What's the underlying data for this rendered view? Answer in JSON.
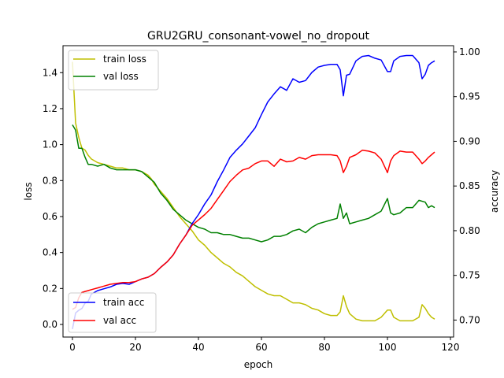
{
  "chart_data": {
    "type": "line",
    "title": "GRU2GRU_consonant-vowel_no_dropout",
    "xlabel": "epoch",
    "ylabel_left": "loss",
    "ylabel_right": "accuracy",
    "xlim": [
      -3,
      121
    ],
    "ylim_left": [
      -0.07,
      1.55
    ],
    "ylim_right": [
      0.681,
      1.007
    ],
    "x_ticks": [
      0,
      20,
      40,
      60,
      80,
      100,
      120
    ],
    "y_ticks_left": [
      0.0,
      0.2,
      0.4,
      0.6,
      0.8,
      1.0,
      1.2,
      1.4
    ],
    "y_ticks_right": [
      0.7,
      0.75,
      0.8,
      0.85,
      0.9,
      0.95,
      1.0
    ],
    "grid": false,
    "legend_left_placement": "upper left",
    "legend_right_placement": "lower left",
    "series_left": [
      {
        "name": "train loss",
        "color": "#bfbf00",
        "x": [
          0,
          1,
          2,
          3,
          4,
          5,
          6,
          8,
          10,
          12,
          14,
          16,
          18,
          20,
          22,
          24,
          25,
          26,
          28,
          30,
          32,
          34,
          36,
          38,
          40,
          42,
          44,
          46,
          48,
          50,
          52,
          54,
          56,
          58,
          60,
          62,
          64,
          66,
          68,
          70,
          72,
          74,
          76,
          78,
          80,
          82,
          84,
          85,
          86,
          87,
          88,
          90,
          92,
          94,
          96,
          98,
          100,
          101,
          102,
          104,
          106,
          108,
          110,
          111,
          112,
          113,
          114,
          115
        ],
        "values": [
          1.46,
          1.12,
          1.04,
          0.98,
          0.97,
          0.94,
          0.92,
          0.9,
          0.89,
          0.88,
          0.87,
          0.87,
          0.86,
          0.86,
          0.85,
          0.83,
          0.81,
          0.78,
          0.74,
          0.7,
          0.65,
          0.6,
          0.56,
          0.52,
          0.47,
          0.44,
          0.4,
          0.37,
          0.34,
          0.32,
          0.29,
          0.27,
          0.24,
          0.21,
          0.19,
          0.17,
          0.16,
          0.16,
          0.14,
          0.12,
          0.12,
          0.11,
          0.09,
          0.08,
          0.06,
          0.05,
          0.05,
          0.07,
          0.16,
          0.1,
          0.06,
          0.03,
          0.02,
          0.02,
          0.02,
          0.04,
          0.08,
          0.08,
          0.04,
          0.02,
          0.02,
          0.02,
          0.04,
          0.11,
          0.09,
          0.06,
          0.04,
          0.03
        ]
      },
      {
        "name": "val loss",
        "color": "#008000",
        "x": [
          0,
          1,
          2,
          3,
          4,
          5,
          6,
          8,
          10,
          12,
          14,
          16,
          18,
          20,
          22,
          24,
          26,
          28,
          30,
          32,
          34,
          36,
          38,
          40,
          42,
          44,
          46,
          48,
          50,
          52,
          54,
          56,
          58,
          60,
          62,
          64,
          66,
          68,
          70,
          72,
          74,
          76,
          78,
          80,
          82,
          84,
          85,
          86,
          87,
          88,
          90,
          92,
          94,
          96,
          98,
          100,
          101,
          102,
          104,
          106,
          108,
          110,
          112,
          113,
          114,
          115
        ],
        "values": [
          1.11,
          1.08,
          0.98,
          0.98,
          0.93,
          0.89,
          0.89,
          0.88,
          0.89,
          0.87,
          0.86,
          0.86,
          0.86,
          0.86,
          0.85,
          0.82,
          0.79,
          0.73,
          0.69,
          0.64,
          0.61,
          0.58,
          0.56,
          0.54,
          0.53,
          0.51,
          0.51,
          0.5,
          0.5,
          0.49,
          0.48,
          0.48,
          0.47,
          0.46,
          0.47,
          0.49,
          0.49,
          0.5,
          0.52,
          0.53,
          0.51,
          0.54,
          0.56,
          0.57,
          0.58,
          0.59,
          0.67,
          0.59,
          0.62,
          0.56,
          0.57,
          0.58,
          0.59,
          0.61,
          0.63,
          0.7,
          0.62,
          0.61,
          0.62,
          0.65,
          0.65,
          0.69,
          0.68,
          0.65,
          0.66,
          0.65
        ]
      }
    ],
    "series_right": [
      {
        "name": "train acc",
        "color": "#0000ff",
        "x": [
          0,
          1,
          2,
          3,
          4,
          5,
          6,
          8,
          10,
          12,
          14,
          16,
          18,
          20,
          22,
          24,
          26,
          28,
          30,
          32,
          34,
          36,
          38,
          40,
          42,
          44,
          46,
          48,
          50,
          52,
          54,
          56,
          58,
          60,
          62,
          64,
          66,
          68,
          70,
          72,
          74,
          76,
          78,
          80,
          82,
          84,
          85,
          86,
          87,
          88,
          90,
          92,
          94,
          96,
          98,
          100,
          101,
          102,
          104,
          106,
          108,
          110,
          111,
          112,
          113,
          114,
          115
        ],
        "values": [
          0.69,
          0.708,
          0.711,
          0.713,
          0.719,
          0.721,
          0.729,
          0.733,
          0.735,
          0.737,
          0.74,
          0.741,
          0.74,
          0.743,
          0.746,
          0.748,
          0.752,
          0.759,
          0.765,
          0.773,
          0.785,
          0.795,
          0.808,
          0.818,
          0.83,
          0.84,
          0.855,
          0.868,
          0.882,
          0.89,
          0.897,
          0.906,
          0.915,
          0.93,
          0.944,
          0.953,
          0.961,
          0.957,
          0.97,
          0.966,
          0.968,
          0.977,
          0.983,
          0.985,
          0.986,
          0.986,
          0.98,
          0.951,
          0.974,
          0.975,
          0.99,
          0.995,
          0.996,
          0.993,
          0.991,
          0.978,
          0.978,
          0.99,
          0.995,
          0.996,
          0.996,
          0.988,
          0.97,
          0.975,
          0.985,
          0.988,
          0.99
        ]
      },
      {
        "name": "val acc",
        "color": "#ff0000",
        "x": [
          0,
          1,
          2,
          3,
          4,
          5,
          6,
          8,
          10,
          12,
          14,
          16,
          18,
          20,
          22,
          24,
          26,
          28,
          30,
          32,
          34,
          36,
          38,
          40,
          42,
          44,
          46,
          48,
          50,
          52,
          54,
          56,
          58,
          60,
          62,
          64,
          66,
          68,
          70,
          72,
          74,
          76,
          78,
          80,
          82,
          84,
          85,
          86,
          87,
          88,
          90,
          92,
          94,
          96,
          98,
          100,
          101,
          102,
          104,
          106,
          108,
          110,
          111,
          112,
          113,
          114,
          115
        ],
        "values": [
          0.712,
          0.714,
          0.725,
          0.731,
          0.732,
          0.733,
          0.734,
          0.736,
          0.738,
          0.74,
          0.741,
          0.742,
          0.742,
          0.743,
          0.746,
          0.748,
          0.752,
          0.759,
          0.765,
          0.773,
          0.785,
          0.795,
          0.806,
          0.812,
          0.818,
          0.825,
          0.835,
          0.845,
          0.855,
          0.862,
          0.868,
          0.87,
          0.875,
          0.878,
          0.878,
          0.872,
          0.88,
          0.877,
          0.878,
          0.882,
          0.88,
          0.884,
          0.885,
          0.885,
          0.885,
          0.884,
          0.878,
          0.865,
          0.872,
          0.882,
          0.885,
          0.89,
          0.889,
          0.887,
          0.88,
          0.865,
          0.878,
          0.884,
          0.889,
          0.888,
          0.888,
          0.88,
          0.875,
          0.878,
          0.882,
          0.885,
          0.888
        ]
      }
    ]
  }
}
